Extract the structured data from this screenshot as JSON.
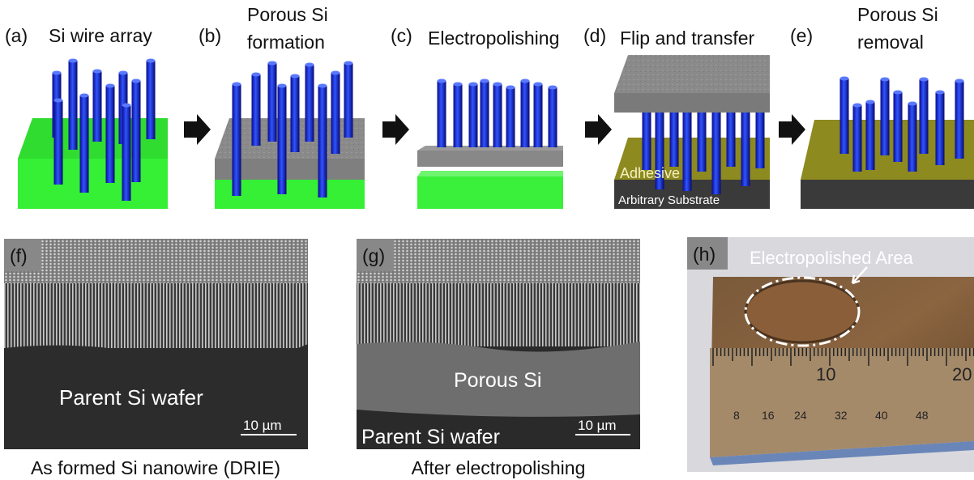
{
  "panels": [
    {
      "label": "(a)",
      "title": [
        "Si wire array"
      ]
    },
    {
      "label": "(b)",
      "title": [
        "Porous Si",
        "formation"
      ]
    },
    {
      "label": "(c)",
      "title": [
        "Electropolishing"
      ]
    },
    {
      "label": "(d)",
      "title": [
        "Flip and transfer"
      ]
    },
    {
      "label": "(e)",
      "title": [
        "Porous Si",
        "removal"
      ]
    }
  ],
  "substrate_labels": {
    "adhesive": "Adhesive",
    "substrate": "Arbitrary Substrate"
  },
  "images": [
    {
      "label": "(f)",
      "texts": [
        "Parent Si wafer"
      ],
      "scale_bar": "10 µm",
      "caption": "As formed Si nanowire (DRIE)"
    },
    {
      "label": "(g)",
      "texts": [
        "Porous Si",
        "Parent Si wafer"
      ],
      "scale_bar": "10 µm",
      "caption": "After electropolishing"
    },
    {
      "label": "(h)",
      "annotation": "Electropolished Area",
      "ruler_top": [
        "10",
        "20"
      ],
      "ruler_bottom": [
        "8",
        "16",
        "24",
        "32",
        "40",
        "48"
      ]
    }
  ]
}
